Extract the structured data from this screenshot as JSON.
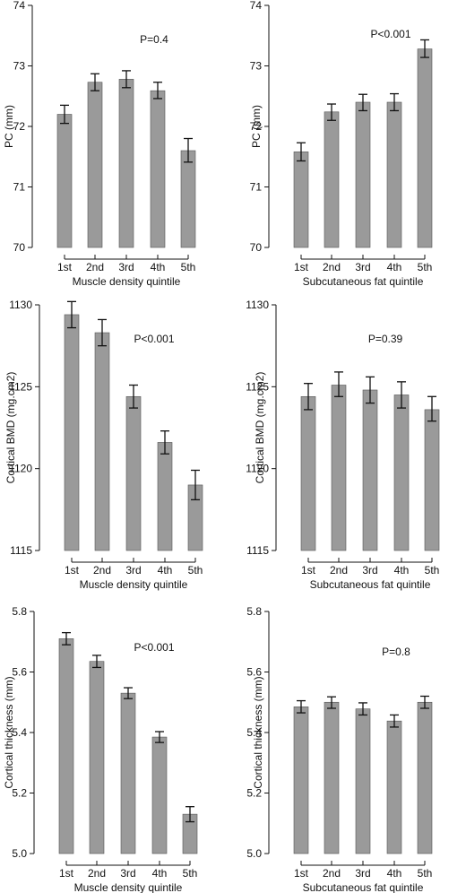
{
  "chart_data": [
    {
      "type": "bar",
      "annotation": "P=0.4",
      "xlabel": "Muscle density quintile",
      "ylabel": "PC (mm)",
      "categories": [
        "1st",
        "2nd",
        "3rd",
        "4th",
        "5th"
      ],
      "values": [
        72.2,
        72.73,
        72.78,
        72.59,
        71.6
      ],
      "error_low": [
        72.05,
        72.59,
        72.64,
        72.46,
        71.41
      ],
      "error_high": [
        72.35,
        72.87,
        72.92,
        72.73,
        71.8
      ],
      "ylim": [
        70,
        74
      ],
      "yticks": [
        70,
        71,
        72,
        73,
        74
      ],
      "ytick_labels": [
        "70",
        "71",
        "72",
        "73",
        "74"
      ]
    },
    {
      "type": "bar",
      "annotation": "P<0.001",
      "xlabel": "Subcutaneous fat quintile",
      "ylabel": "PC (mm)",
      "categories": [
        "1st",
        "2nd",
        "3rd",
        "4th",
        "5th"
      ],
      "values": [
        71.58,
        72.24,
        72.4,
        72.4,
        73.28
      ],
      "error_low": [
        71.43,
        72.1,
        72.26,
        72.26,
        73.14
      ],
      "error_high": [
        71.73,
        72.37,
        72.53,
        72.54,
        73.43
      ],
      "ylim": [
        70,
        74
      ],
      "yticks": [
        70,
        71,
        72,
        73,
        74
      ],
      "ytick_labels": [
        "70",
        "71",
        "72",
        "73",
        "74"
      ]
    },
    {
      "type": "bar",
      "annotation": "P<0.001",
      "xlabel": "Muscle density quintile",
      "ylabel": "Cortical BMD (mg.cm2)",
      "categories": [
        "1st",
        "2nd",
        "3rd",
        "4th",
        "5th"
      ],
      "values": [
        1129.4,
        1128.3,
        1124.4,
        1121.6,
        1119.0
      ],
      "error_low": [
        1128.6,
        1127.5,
        1123.7,
        1120.9,
        1118.1
      ],
      "error_high": [
        1130.2,
        1129.1,
        1125.1,
        1122.3,
        1119.9
      ],
      "ylim": [
        1115,
        1130
      ],
      "yticks": [
        1115,
        1120,
        1125,
        1130
      ],
      "ytick_labels": [
        "1115",
        "1120",
        "1125",
        "1130"
      ]
    },
    {
      "type": "bar",
      "annotation": "P=0.39",
      "xlabel": "Subcutaneous fat quintile",
      "ylabel": "Cortical BMD (mg.cm2)",
      "categories": [
        "1st",
        "2nd",
        "3rd",
        "4th",
        "5th"
      ],
      "values": [
        1124.4,
        1125.1,
        1124.8,
        1124.5,
        1123.6
      ],
      "error_low": [
        1123.6,
        1124.4,
        1124.0,
        1123.7,
        1122.9
      ],
      "error_high": [
        1125.2,
        1125.9,
        1125.6,
        1125.3,
        1124.4
      ],
      "ylim": [
        1115,
        1130
      ],
      "yticks": [
        1115,
        1120,
        1125,
        1130
      ],
      "ytick_labels": [
        "1115",
        "1120",
        "1125",
        "1130"
      ]
    },
    {
      "type": "bar",
      "annotation": "P<0.001",
      "xlabel": "Muscle density quintile",
      "ylabel": "Cortical thickness (mm)",
      "categories": [
        "1st",
        "2nd",
        "3rd",
        "4th",
        "5th"
      ],
      "values": [
        5.71,
        5.635,
        5.53,
        5.385,
        5.13
      ],
      "error_low": [
        5.69,
        5.615,
        5.512,
        5.367,
        5.105
      ],
      "error_high": [
        5.73,
        5.655,
        5.548,
        5.403,
        5.155
      ],
      "ylim": [
        5.0,
        5.8
      ],
      "yticks": [
        5.0,
        5.2,
        5.4,
        5.6,
        5.8
      ],
      "ytick_labels": [
        "5.0",
        "5.2",
        "5.4",
        "5.6",
        "5.8"
      ]
    },
    {
      "type": "bar",
      "annotation": "P=0.8",
      "xlabel": "Subcutaneous fat quintile",
      "ylabel": "Cortical thickness (mm)",
      "categories": [
        "1st",
        "2nd",
        "3rd",
        "4th",
        "5th"
      ],
      "values": [
        5.485,
        5.5,
        5.478,
        5.438,
        5.5
      ],
      "error_low": [
        5.465,
        5.48,
        5.458,
        5.418,
        5.48
      ],
      "error_high": [
        5.505,
        5.518,
        5.498,
        5.458,
        5.52
      ],
      "ylim": [
        5.0,
        5.8
      ],
      "yticks": [
        5.0,
        5.2,
        5.4,
        5.6,
        5.8
      ],
      "ytick_labels": [
        "5.0",
        "5.2",
        "5.4",
        "5.6",
        "5.8"
      ]
    }
  ],
  "colors": {
    "bar_fill": "#9a9a9a",
    "bar_stroke": "#555555",
    "error_bar": "#111111",
    "axis": "#111111",
    "panel_bg": "#ffffff"
  }
}
